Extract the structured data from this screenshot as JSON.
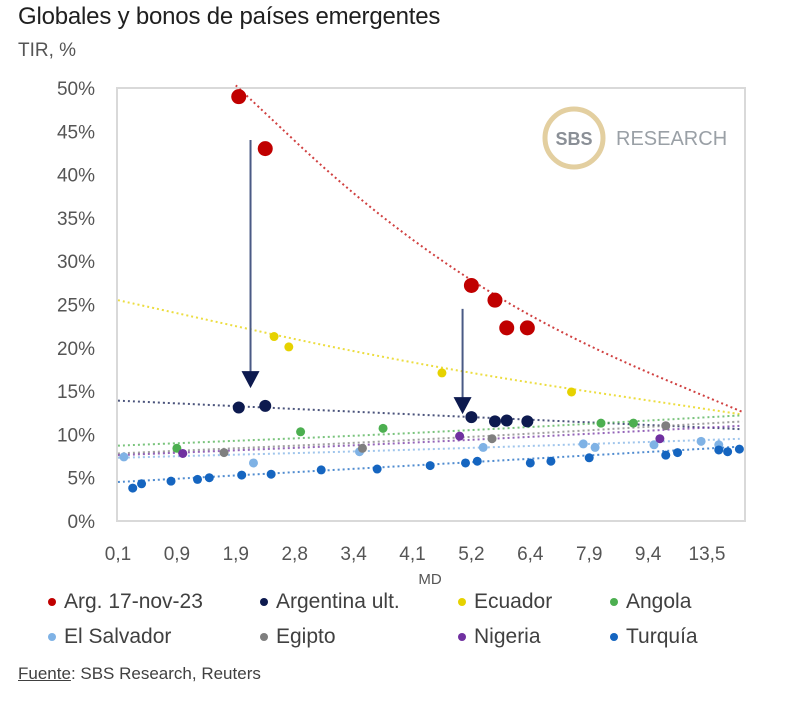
{
  "header": {
    "title": "Globales y bonos de países emergentes",
    "subtitle": "TIR, %"
  },
  "logo": {
    "circle_text": "SBS",
    "text": "RESEARCH"
  },
  "source": {
    "label": "Fuente",
    "text": ": SBS Research, Reuters"
  },
  "chart_data": {
    "type": "scatter",
    "title": "Globales y bonos de países emergentes",
    "ylabel": "TIR, %",
    "xlabel": "MD",
    "ylim": [
      0,
      50
    ],
    "y_ticks": [
      "0%",
      "5%",
      "10%",
      "15%",
      "20%",
      "25%",
      "30%",
      "35%",
      "40%",
      "45%",
      "50%"
    ],
    "x_ticks": [
      "0,1",
      "0,9",
      "1,9",
      "2,8",
      "3,4",
      "4,1",
      "5,2",
      "6,4",
      "7,9",
      "9,4",
      "13,5"
    ],
    "x_note": "x values expressed as position along the categorical MD tick scale (0 = '0,1', 10 = '13,5')",
    "grid": false,
    "legend_position": "bottom",
    "series": [
      {
        "name": "Arg. 17-nov-23",
        "color": "#c00000",
        "size": "large",
        "points": [
          [
            2.05,
            49.0
          ],
          [
            2.5,
            43.0
          ],
          [
            6.0,
            27.2
          ],
          [
            6.4,
            25.5
          ],
          [
            6.6,
            22.3
          ],
          [
            6.95,
            22.3
          ]
        ],
        "trend": [
          [
            2.0,
            50.3
          ],
          [
            4.0,
            37.5
          ],
          [
            6.0,
            27.5
          ],
          [
            8.0,
            20.0
          ],
          [
            10.6,
            12.6
          ]
        ]
      },
      {
        "name": "Argentina ult.",
        "color": "#0d1a4f",
        "size": "medium",
        "points": [
          [
            2.05,
            13.1
          ],
          [
            2.5,
            13.3
          ],
          [
            6.0,
            12.0
          ],
          [
            6.4,
            11.5
          ],
          [
            6.6,
            11.6
          ],
          [
            6.95,
            11.5
          ]
        ],
        "trend": [
          [
            0.0,
            13.9
          ],
          [
            5.0,
            12.3
          ],
          [
            10.6,
            10.6
          ]
        ]
      },
      {
        "name": "Ecuador",
        "color": "#e6d200",
        "size": "small",
        "points": [
          [
            2.65,
            21.3
          ],
          [
            2.9,
            20.1
          ],
          [
            5.5,
            17.1
          ],
          [
            7.7,
            14.9
          ]
        ],
        "trend": [
          [
            0.0,
            25.5
          ],
          [
            5.0,
            18.0
          ],
          [
            10.6,
            12.3
          ]
        ]
      },
      {
        "name": "Angola",
        "color": "#4caf50",
        "size": "small",
        "points": [
          [
            1.0,
            8.4
          ],
          [
            3.1,
            10.3
          ],
          [
            4.5,
            10.7
          ],
          [
            8.2,
            11.3
          ],
          [
            8.75,
            11.3
          ]
        ],
        "trend": [
          [
            0.0,
            8.7
          ],
          [
            5.0,
            10.1
          ],
          [
            10.6,
            12.2
          ]
        ]
      },
      {
        "name": "El Salvador",
        "color": "#7fb2e5",
        "size": "small",
        "points": [
          [
            0.1,
            7.4
          ],
          [
            2.3,
            6.7
          ],
          [
            4.1,
            8.0
          ],
          [
            6.2,
            8.5
          ],
          [
            7.9,
            8.9
          ],
          [
            8.1,
            8.5
          ],
          [
            9.1,
            8.8
          ],
          [
            9.9,
            9.2
          ],
          [
            10.2,
            8.8
          ]
        ],
        "trend": [
          [
            0.0,
            7.3
          ],
          [
            5.0,
            8.2
          ],
          [
            10.6,
            9.5
          ]
        ]
      },
      {
        "name": "Egipto",
        "color": "#7f7f7f",
        "size": "small",
        "points": [
          [
            1.8,
            7.9
          ],
          [
            4.15,
            8.4
          ],
          [
            6.35,
            9.5
          ],
          [
            9.3,
            11.0
          ]
        ],
        "trend": [
          [
            0.0,
            7.8
          ],
          [
            5.0,
            9.3
          ],
          [
            10.6,
            11.5
          ]
        ]
      },
      {
        "name": "Nigeria",
        "color": "#7030a0",
        "size": "small",
        "points": [
          [
            1.1,
            7.8
          ],
          [
            5.8,
            9.8
          ],
          [
            9.2,
            9.5
          ]
        ],
        "trend": [
          [
            0.0,
            7.6
          ],
          [
            5.0,
            9.0
          ],
          [
            10.6,
            11.0
          ]
        ]
      },
      {
        "name": "Turquía",
        "color": "#1565c0",
        "size": "small",
        "points": [
          [
            0.25,
            3.8
          ],
          [
            0.4,
            4.3
          ],
          [
            0.9,
            4.6
          ],
          [
            1.35,
            4.8
          ],
          [
            1.55,
            5.0
          ],
          [
            2.1,
            5.3
          ],
          [
            2.6,
            5.4
          ],
          [
            3.45,
            5.9
          ],
          [
            4.4,
            6.0
          ],
          [
            5.3,
            6.4
          ],
          [
            5.9,
            6.7
          ],
          [
            6.1,
            6.9
          ],
          [
            7.0,
            6.7
          ],
          [
            7.35,
            6.9
          ],
          [
            8.0,
            7.3
          ],
          [
            9.3,
            7.6
          ],
          [
            9.5,
            7.9
          ],
          [
            10.2,
            8.2
          ],
          [
            10.35,
            8.0
          ],
          [
            10.55,
            8.3
          ]
        ],
        "trend": [
          [
            0.0,
            4.5
          ],
          [
            5.0,
            6.4
          ],
          [
            10.6,
            8.6
          ]
        ]
      }
    ],
    "annotations": [
      {
        "type": "arrow",
        "x": 2.25,
        "from": 44.0,
        "to": 15.8,
        "color": "#0d1a4f"
      },
      {
        "type": "arrow",
        "x": 5.85,
        "from": 24.5,
        "to": 12.8,
        "color": "#0d1a4f"
      }
    ]
  },
  "legend": [
    {
      "label": "Arg. 17-nov-23",
      "color": "#c00000"
    },
    {
      "label": "Argentina ult.",
      "color": "#0d1a4f"
    },
    {
      "label": "Ecuador",
      "color": "#e6d200"
    },
    {
      "label": "Angola",
      "color": "#4caf50"
    },
    {
      "label": "El Salvador",
      "color": "#7fb2e5"
    },
    {
      "label": "Egipto",
      "color": "#7f7f7f"
    },
    {
      "label": "Nigeria",
      "color": "#7030a0"
    },
    {
      "label": "Turquía",
      "color": "#1565c0"
    }
  ]
}
